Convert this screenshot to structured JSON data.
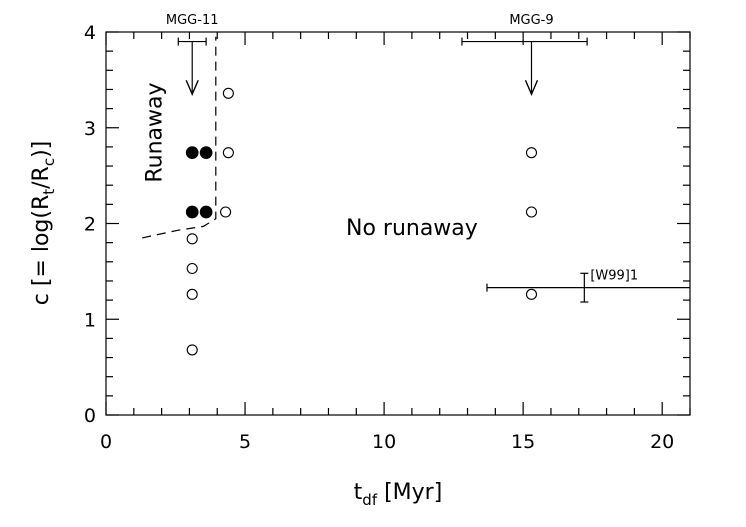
{
  "chart_data": {
    "type": "scatter",
    "xlabel": {
      "base": "t",
      "sub": "df",
      "suffix": " [Myr]"
    },
    "ylabel": {
      "prefix": "c [= log(R",
      "sub1": "t",
      "mid": "/R",
      "sub2": "c",
      "suffix": ")]"
    },
    "xlim": [
      0,
      21
    ],
    "ylim": [
      0,
      4
    ],
    "x_major_ticks": [
      0,
      5,
      10,
      15,
      20
    ],
    "x_tick_labels": [
      "0",
      "5",
      "10",
      "15",
      "20"
    ],
    "y_major_ticks": [
      0,
      1,
      2,
      3,
      4
    ],
    "y_tick_labels": [
      "0",
      "1",
      "2",
      "3",
      "4"
    ],
    "x_minor_step": 1,
    "y_minor_step": 0.2,
    "grid": false,
    "series": [
      {
        "marker": "filled-circle",
        "points": [
          [
            3.1,
            2.74
          ],
          [
            3.6,
            2.74
          ],
          [
            3.1,
            2.12
          ],
          [
            3.6,
            2.12
          ]
        ]
      },
      {
        "marker": "open-circle",
        "points": [
          [
            4.4,
            3.36
          ],
          [
            4.4,
            2.74
          ],
          [
            4.3,
            2.12
          ],
          [
            3.1,
            1.84
          ],
          [
            3.1,
            1.53
          ],
          [
            3.1,
            1.26
          ],
          [
            3.1,
            0.68
          ],
          [
            15.3,
            2.74
          ],
          [
            15.3,
            2.12
          ],
          [
            15.3,
            1.26
          ]
        ]
      }
    ],
    "boundary_line": {
      "style": "dashed",
      "points": [
        [
          1.3,
          1.85
        ],
        [
          2.6,
          1.93
        ],
        [
          3.5,
          1.97
        ],
        [
          3.95,
          2.05
        ],
        [
          3.95,
          3.95
        ]
      ]
    },
    "limits": [
      {
        "name": "MGG-11",
        "x": 3.1,
        "x_err": [
          2.6,
          3.6
        ],
        "y_from": 3.9,
        "y_to": 3.35
      },
      {
        "name": "MGG-9",
        "x": 15.3,
        "x_err": [
          12.8,
          17.3
        ],
        "y_from": 3.9,
        "y_to": 3.35
      }
    ],
    "w99": {
      "label": "[W99]1",
      "h_line": {
        "y": 1.33,
        "x_from": 13.7,
        "x_to": 21
      },
      "v_err": {
        "x": 17.2,
        "y_from": 1.18,
        "y_to": 1.48
      }
    },
    "region_labels": [
      {
        "text": "Runaway",
        "x": 2.0,
        "y": 2.95,
        "rotate": -90
      },
      {
        "text": "No runaway",
        "x": 11.0,
        "y": 1.88
      }
    ]
  }
}
